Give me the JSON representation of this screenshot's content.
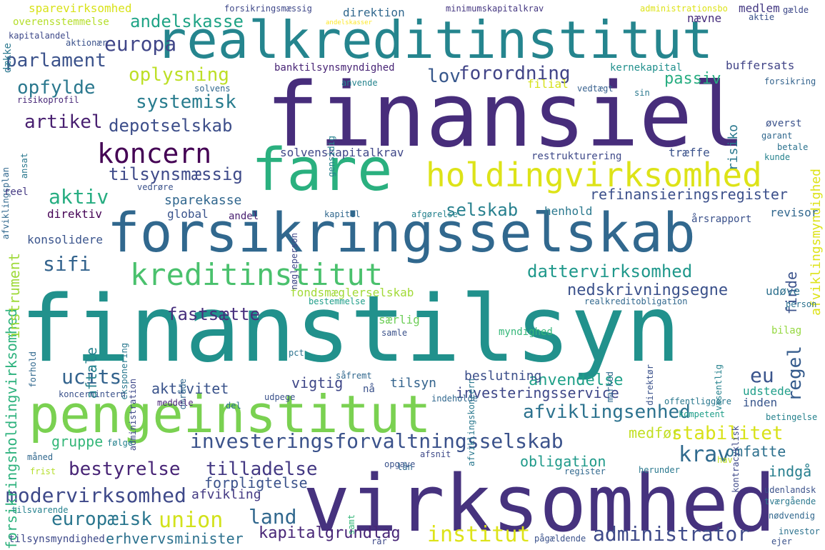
{
  "words": [
    {
      "text": "finanstilsyn",
      "color": "#21918c"
    },
    {
      "text": "finansiel",
      "color": "#472d7b"
    },
    {
      "text": "virksomhed",
      "color": "#46327e"
    },
    {
      "text": "forsikringsselskab",
      "color": "#31688e"
    },
    {
      "text": "realkreditinstitut",
      "color": "#25858e"
    },
    {
      "text": "pengeinstitut",
      "color": "#7ad151"
    },
    {
      "text": "fare",
      "color": "#2ab07f"
    },
    {
      "text": "holdingvirksomhed",
      "color": "#dde318"
    },
    {
      "text": "kreditinstitut",
      "color": "#4ac16d"
    },
    {
      "text": "koncern",
      "color": "#440154"
    },
    {
      "text": "investeringsforvaltningsselskab",
      "color": "#3b528b"
    },
    {
      "text": "afviklingsenhed",
      "color": "#2c728e"
    },
    {
      "text": "modervirksomhed",
      "color": "#3e4989"
    },
    {
      "text": "administrator",
      "color": "#3e4a89"
    },
    {
      "text": "institut",
      "color": "#dde318"
    },
    {
      "text": "nedskrivningsegne",
      "color": "#3b518b"
    },
    {
      "text": "dattervirksomhed",
      "color": "#1f988b"
    },
    {
      "text": "bestyrelse",
      "color": "#482576"
    },
    {
      "text": "tilladelse",
      "color": "#443983"
    },
    {
      "text": "stabilitet",
      "color": "#d8e219"
    },
    {
      "text": "europa",
      "color": "#404688"
    },
    {
      "text": "parlament",
      "color": "#3b528b"
    },
    {
      "text": "oplysning",
      "color": "#bddf26"
    },
    {
      "text": "forordning",
      "color": "#414487"
    },
    {
      "text": "opfylde",
      "color": "#2a788e"
    },
    {
      "text": "systemisk",
      "color": "#287c8e"
    },
    {
      "text": "depotselskab",
      "color": "#3d4e8a"
    },
    {
      "text": "artikel",
      "color": "#481f70"
    },
    {
      "text": "tilsynsmæssig",
      "color": "#3e4a89"
    },
    {
      "text": "andelskasse",
      "color": "#20a486"
    },
    {
      "text": "lov",
      "color": "#38588c"
    },
    {
      "text": "aktiv",
      "color": "#26ad81"
    },
    {
      "text": "selskab",
      "color": "#27808e"
    },
    {
      "text": "sparekasse",
      "color": "#31678e"
    },
    {
      "text": "refinansieringsregister",
      "color": "#3c508b"
    },
    {
      "text": "sifi",
      "color": "#33638d"
    },
    {
      "text": "fastsætte",
      "color": "#472f7d"
    },
    {
      "text": "ucits",
      "color": "#33638d"
    },
    {
      "text": "eu",
      "color": "#3a548c"
    },
    {
      "text": "regel",
      "color": "#365c8d"
    },
    {
      "text": "krav",
      "color": "#306a8e"
    },
    {
      "text": "union",
      "color": "#d2e21b"
    },
    {
      "text": "land",
      "color": "#31688e"
    },
    {
      "text": "europæisk",
      "color": "#2a768e"
    },
    {
      "text": "kapitalgrundlag",
      "color": "#482677"
    },
    {
      "text": "erhvervsminister",
      "color": "#2c718e"
    },
    {
      "text": "aktivitet",
      "color": "#3a538b"
    },
    {
      "text": "anvendelse",
      "color": "#1fa088"
    },
    {
      "text": "investeringsservice",
      "color": "#3f4889"
    },
    {
      "text": "obligation",
      "color": "#1f9a8a"
    },
    {
      "text": "omfatte",
      "color": "#2d708e"
    },
    {
      "text": "medfør",
      "color": "#c2df23"
    },
    {
      "text": "indgå",
      "color": "#277f8e"
    },
    {
      "text": "forpligtelse",
      "color": "#3b528b"
    },
    {
      "text": "afvikling",
      "color": "#443a83"
    },
    {
      "text": "gruppe",
      "color": "#35b779"
    },
    {
      "text": "rår",
      "color": "#3e4989"
    },
    {
      "text": "passiv",
      "color": "#27ad81"
    },
    {
      "text": "risiko",
      "color": "#2a788e"
    },
    {
      "text": "finde",
      "color": "#3b528b"
    },
    {
      "text": "forsikringsholdingvirksomhed",
      "color": "#2db27d"
    },
    {
      "text": "instrument",
      "color": "#9fda3a"
    },
    {
      "text": "afviklingsmyndighed",
      "color": "#dde318"
    },
    {
      "text": "aftale",
      "color": "#26828e"
    },
    {
      "text": "beslutning",
      "color": "#3c4f8a"
    },
    {
      "text": "vigtig",
      "color": "#3f4788"
    },
    {
      "text": "tilsyn",
      "color": "#33638d"
    },
    {
      "text": "fondsmæglerselskab",
      "color": "#a2da37"
    },
    {
      "text": "særlig",
      "color": "#6ece58"
    },
    {
      "text": "udstede",
      "color": "#1f9e89"
    },
    {
      "text": "inden",
      "color": "#39568c"
    },
    {
      "text": "bilag",
      "color": "#95d840"
    },
    {
      "text": "myndighed",
      "color": "#35b779"
    },
    {
      "text": "buffersats",
      "color": "#414487"
    },
    {
      "text": "kernekapital",
      "color": "#21908d"
    },
    {
      "text": "filial",
      "color": "#d5e21a"
    },
    {
      "text": "restrukturering",
      "color": "#3e4989"
    },
    {
      "text": "solvenskapitalkrav",
      "color": "#3f4788"
    },
    {
      "text": "træffe",
      "color": "#3b528b"
    },
    {
      "text": "direktiv",
      "color": "#440154"
    },
    {
      "text": "konsolidere",
      "color": "#3a548c"
    },
    {
      "text": "global",
      "color": "#3a548c"
    },
    {
      "text": "andel",
      "color": "#481f70"
    },
    {
      "text": "henhold",
      "color": "#2a788e"
    },
    {
      "text": "udøve",
      "color": "#2d708e"
    },
    {
      "text": "årsrapport",
      "color": "#3b518b"
    },
    {
      "text": "revisor",
      "color": "#31678e"
    },
    {
      "text": "sparevirksomhed",
      "color": "#d8e219"
    },
    {
      "text": "andelskasser",
      "color": "#fde725"
    },
    {
      "text": "forsikringsmæssig",
      "color": "#3f4889"
    },
    {
      "text": "minimumskapitalkrav",
      "color": "#453781"
    },
    {
      "text": "administrationsbo",
      "color": "#dde318"
    },
    {
      "text": "medlem",
      "color": "#443983"
    },
    {
      "text": "gælde",
      "color": "#3e4989"
    },
    {
      "text": "aktie",
      "color": "#3b528b"
    },
    {
      "text": "nævne",
      "color": "#472d7b"
    },
    {
      "text": "direktion",
      "color": "#31688e"
    },
    {
      "text": "overensstemmelse",
      "color": "#b5de2b"
    },
    {
      "text": "kapitalandel",
      "color": "#3e4989"
    },
    {
      "text": "aktionær",
      "color": "#3b528b"
    },
    {
      "text": "dække",
      "color": "#2a788e"
    },
    {
      "text": "banktilsynsmyndighed",
      "color": "#482475"
    },
    {
      "text": "anvende",
      "color": "#25848e"
    },
    {
      "text": "vedtægt",
      "color": "#355f8d"
    },
    {
      "text": "sin",
      "color": "#2a788e"
    },
    {
      "text": "forsikring",
      "color": "#33638d"
    },
    {
      "text": "solvens",
      "color": "#31688e"
    },
    {
      "text": "risikoprofil",
      "color": "#482878"
    },
    {
      "text": "gensidig",
      "color": "#26828e"
    },
    {
      "text": "øverst",
      "color": "#3b528b"
    },
    {
      "text": "garant",
      "color": "#31688e"
    },
    {
      "text": "betale",
      "color": "#2c728e"
    },
    {
      "text": "kunde",
      "color": "#26828e"
    },
    {
      "text": "afviklingsplan",
      "color": "#31688e"
    },
    {
      "text": "ansat",
      "color": "#2a788e"
    },
    {
      "text": "reel",
      "color": "#443983"
    },
    {
      "text": "vedrøre",
      "color": "#3b528b"
    },
    {
      "text": "nøgleperson",
      "color": "#3f4889"
    },
    {
      "text": "kapitel",
      "color": "#31688e"
    },
    {
      "text": "afgørelse",
      "color": "#26828e"
    },
    {
      "text": "person",
      "color": "#2c728e"
    },
    {
      "text": "realkreditobligation",
      "color": "#31688e"
    },
    {
      "text": "bestemmelse",
      "color": "#1f9e89"
    },
    {
      "text": "samle",
      "color": "#3b528b"
    },
    {
      "text": "forhold",
      "color": "#31688e"
    },
    {
      "text": "eksponering",
      "color": "#2a788e"
    },
    {
      "text": "administration",
      "color": "#3e4989"
    },
    {
      "text": "område",
      "color": "#31688e"
    },
    {
      "text": "pct",
      "color": "#2c728e"
    },
    {
      "text": "afviklingskoncern",
      "color": "#2a788e"
    },
    {
      "text": "direktør",
      "color": "#3b528b"
    },
    {
      "text": "marked",
      "color": "#31688e"
    },
    {
      "text": "væsentlig",
      "color": "#26828e"
    },
    {
      "text": "kontracyklisk",
      "color": "#3e4989"
    },
    {
      "text": "koncernintern",
      "color": "#3b528b"
    },
    {
      "text": "meddele",
      "color": "#482576"
    },
    {
      "text": "udpege",
      "color": "#3b528b"
    },
    {
      "text": "del",
      "color": "#2c728e"
    },
    {
      "text": "såfremt",
      "color": "#31688e"
    },
    {
      "text": "nå",
      "color": "#3b528b"
    },
    {
      "text": "indeholde",
      "color": "#31688e"
    },
    {
      "text": "offentliggøre",
      "color": "#2a788e"
    },
    {
      "text": "betingelse",
      "color": "#26828e"
    },
    {
      "text": "kompetent",
      "color": "#1f9e89"
    },
    {
      "text": "følge",
      "color": "#26828e"
    },
    {
      "text": "måned",
      "color": "#31688e"
    },
    {
      "text": "frist",
      "color": "#b5de2b"
    },
    {
      "text": "opgave",
      "color": "#3b528b"
    },
    {
      "text": "afsnit",
      "color": "#3e4989"
    },
    {
      "text": "register",
      "color": "#31688e"
    },
    {
      "text": "herunder",
      "color": "#2a788e"
    },
    {
      "text": "hav",
      "color": "#c2df23"
    },
    {
      "text": "lån",
      "color": "#31688e"
    },
    {
      "text": "udenlandsk",
      "color": "#3b528b"
    },
    {
      "text": "tværgående",
      "color": "#2a788e"
    },
    {
      "text": "nødvendig",
      "color": "#31688e"
    },
    {
      "text": "investor",
      "color": "#2c728e"
    },
    {
      "text": "ejer",
      "color": "#3b528b"
    },
    {
      "text": "tilsvarende",
      "color": "#26828e"
    },
    {
      "text": "samt",
      "color": "#35b779"
    },
    {
      "text": "tilsynsmyndighed",
      "color": "#3e4989"
    },
    {
      "text": "pågældende",
      "color": "#3b528b"
    }
  ]
}
